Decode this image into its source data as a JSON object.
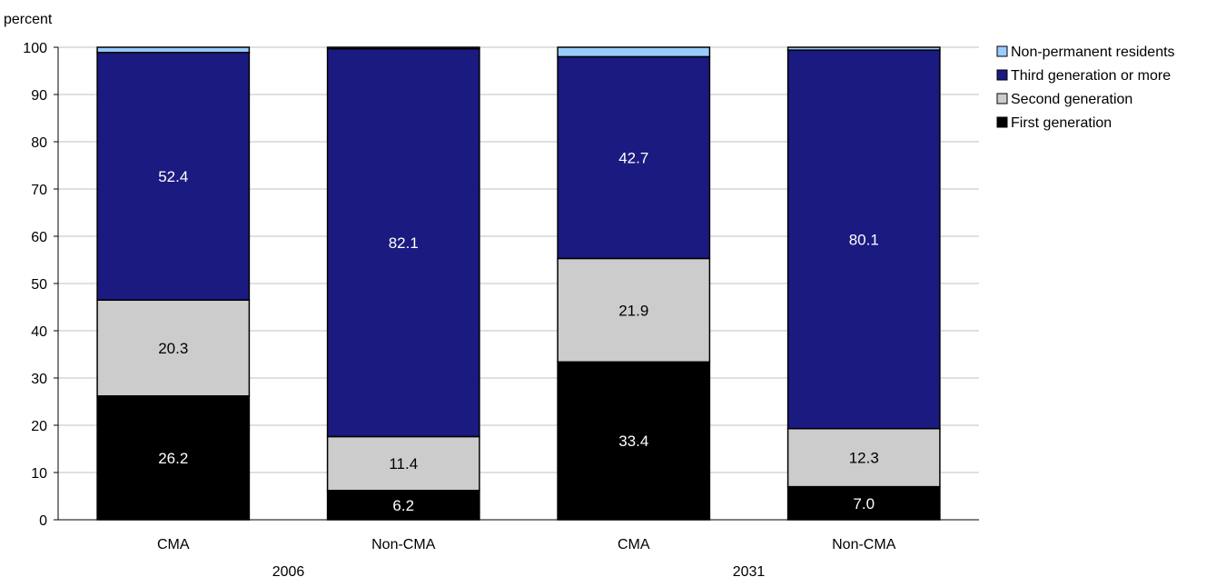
{
  "chart_data": {
    "type": "bar",
    "stacked": true,
    "ylabel": "percent",
    "ylim": [
      0,
      100
    ],
    "yticks": [
      0,
      10,
      20,
      30,
      40,
      50,
      60,
      70,
      80,
      90,
      100
    ],
    "grid": true,
    "legend_position": "top-right",
    "groups": [
      {
        "label": "2006",
        "categories": [
          "CMA",
          "Non-CMA"
        ]
      },
      {
        "label": "2031",
        "categories": [
          "CMA",
          "Non-CMA"
        ]
      }
    ],
    "categories": [
      "CMA",
      "Non-CMA",
      "CMA",
      "Non-CMA"
    ],
    "series": [
      {
        "name": "First generation",
        "color": "#000000",
        "label_color": "#ffffff",
        "values": [
          26.2,
          6.2,
          33.4,
          7.0
        ],
        "labels": [
          "26.2",
          "6.2",
          "33.4",
          "7.0"
        ]
      },
      {
        "name": "Second generation",
        "color": "#cccccc",
        "label_color": "#000000",
        "values": [
          20.3,
          11.4,
          21.9,
          12.3
        ],
        "labels": [
          "20.3",
          "11.4",
          "21.9",
          "12.3"
        ]
      },
      {
        "name": "Third generation or more",
        "color": "#1a1a80",
        "label_color": "#ffffff",
        "values": [
          52.4,
          82.1,
          42.7,
          80.1
        ],
        "labels": [
          "52.4",
          "82.1",
          "42.7",
          "80.1"
        ]
      },
      {
        "name": "Non-permanent residents",
        "color": "#99ccff",
        "label_color": "#000000",
        "values": [
          1.1,
          0.3,
          2.0,
          0.6
        ],
        "labels": [
          "",
          "",
          "",
          ""
        ]
      }
    ],
    "legend_order": [
      "Non-permanent residents",
      "Third generation or more",
      "Second generation",
      "First generation"
    ]
  }
}
